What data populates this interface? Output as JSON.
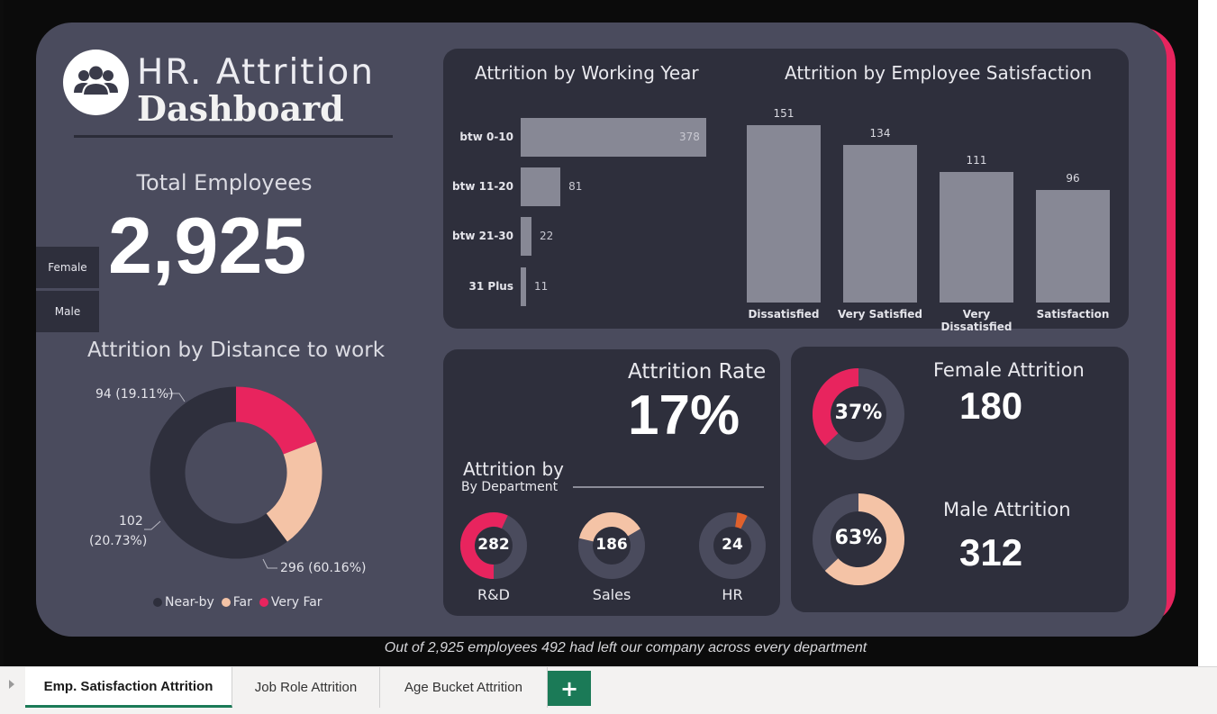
{
  "header": {
    "title_line1": "HR. Attrition",
    "title_line2": "Dashboard",
    "logo_icon": "people-group-icon"
  },
  "total_employees": {
    "label": "Total Employees",
    "value": "2,925"
  },
  "gender_slicer": {
    "items": [
      "Female",
      "Male"
    ]
  },
  "distance_chart": {
    "title": "Attrition by Distance to work",
    "labels": {
      "very_far": "94 (19.11%)",
      "far_count": "102",
      "far_pct": "(20.73%)",
      "near_by": "296 (60.16%)"
    },
    "legend": [
      "Near-by",
      "Far",
      "Very Far"
    ]
  },
  "working_year_chart": {
    "title": "Attrition by Working Year",
    "value_labels": [
      "378",
      "81",
      "22",
      "11"
    ]
  },
  "satisfaction_chart": {
    "title": "Attrition by Employee Satisfaction",
    "value_labels": [
      "151",
      "134",
      "111",
      "96"
    ]
  },
  "attrition_rate": {
    "label": "Attrition Rate",
    "value": "17%"
  },
  "department": {
    "title": "Attrition by",
    "subtitle": "By Department",
    "items": [
      {
        "value": "282",
        "label": "R&D"
      },
      {
        "value": "186",
        "label": "Sales"
      },
      {
        "value": "24",
        "label": "HR"
      }
    ]
  },
  "gender_attrition": {
    "female_label": "Female Attrition",
    "female_value": "180",
    "female_pct": "37%",
    "male_label": "Male Attrition",
    "male_value": "312",
    "male_pct": "63%"
  },
  "footer_note": "Out of 2,925 employees 492 had left our company across every department",
  "sheet_tabs": {
    "items": [
      "Emp. Satisfaction Attrition",
      "Job Role Attrition",
      "Age Bucket Attrition"
    ],
    "add_label": "+"
  },
  "colors": {
    "card": "#4a4b5d",
    "panel": "#2e2f3c",
    "bar": "#878895",
    "pink": "#e8245e",
    "peach": "#f4c3a6",
    "orange": "#e0612c",
    "dark": "#2e2f3c",
    "accent_green": "#1b7a57"
  },
  "chart_data": [
    {
      "type": "pie",
      "title": "Attrition by Distance to work",
      "categories": [
        "Near-by",
        "Far",
        "Very Far"
      ],
      "values": [
        296,
        102,
        94
      ],
      "percents": [
        60.16,
        20.73,
        19.11
      ],
      "colors": [
        "#2e2f3c",
        "#f4c3a6",
        "#e8245e"
      ],
      "legend": "bottom"
    },
    {
      "type": "bar",
      "orientation": "horizontal",
      "title": "Attrition by Working Year",
      "categories": [
        "btw 0-10",
        "btw 11-20",
        "btw 21-30",
        "31 Plus"
      ],
      "values": [
        378,
        81,
        22,
        11
      ]
    },
    {
      "type": "bar",
      "title": "Attrition by Employee Satisfaction",
      "categories": [
        "Dissatisfied",
        "Very Satisfied",
        "Very Dissatisfied",
        "Satisfaction"
      ],
      "values": [
        151,
        134,
        111,
        96
      ]
    },
    {
      "type": "pie",
      "title": "Attrition by",
      "categories": [
        "R&D",
        "Sales",
        "HR"
      ],
      "values": [
        282,
        186,
        24
      ],
      "fractions": [
        0.57,
        0.38,
        0.05
      ]
    },
    {
      "type": "pie",
      "categories": [
        "Female Attrition",
        "Male Attrition"
      ],
      "values": [
        180,
        312
      ],
      "percents": [
        37,
        63
      ]
    }
  ]
}
